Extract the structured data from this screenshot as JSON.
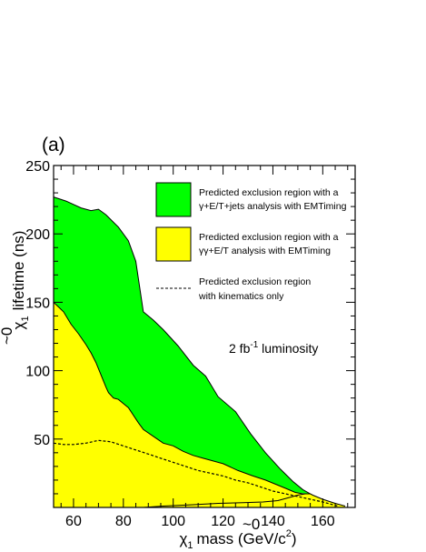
{
  "chart_data": {
    "type": "area",
    "panel_label": "(a)",
    "xlabel": "mass (GeV/c",
    "xlabel_symbol": "χ",
    "xlabel_sup": "~0",
    "xlabel_sub": "1",
    "xlabel_unit_sup": "2",
    "xlabel_close": ")",
    "ylabel": "lifetime (ns)",
    "ylabel_symbol": "χ",
    "ylabel_sup": "~0",
    "ylabel_sub": "1",
    "xlim": [
      52,
      173
    ],
    "ylim": [
      0,
      250
    ],
    "x_ticks": [
      "60",
      "80",
      "100",
      "120",
      "140",
      "160"
    ],
    "x_tick_values": [
      60,
      80,
      100,
      120,
      140,
      160
    ],
    "y_ticks": [
      "50",
      "100",
      "150",
      "200",
      "250"
    ],
    "y_tick_values": [
      50,
      100,
      150,
      200,
      250
    ],
    "annotation": {
      "text": "2 fb",
      "sup": "-1",
      "rest": " luminosity"
    },
    "series": [
      {
        "name": "green-region",
        "color": "#00ff00",
        "upper": [
          [
            52,
            227
          ],
          [
            57,
            224
          ],
          [
            63,
            219
          ],
          [
            67,
            217
          ],
          [
            70,
            218
          ],
          [
            73,
            214
          ],
          [
            78,
            205
          ],
          [
            82,
            195
          ],
          [
            85,
            180
          ],
          [
            88,
            143
          ],
          [
            92,
            137
          ],
          [
            96,
            130
          ],
          [
            102,
            118
          ],
          [
            108,
            104
          ],
          [
            113,
            96
          ],
          [
            118,
            81
          ],
          [
            125,
            70
          ],
          [
            131,
            54
          ],
          [
            137,
            40
          ],
          [
            143,
            28
          ],
          [
            148,
            19
          ],
          [
            152,
            13
          ],
          [
            155,
            10
          ]
        ],
        "lower": [
          [
            52,
            50
          ],
          [
            58,
            58
          ],
          [
            62,
            62
          ],
          [
            67,
            66
          ],
          [
            72,
            69
          ],
          [
            76,
            69
          ],
          [
            80,
            66
          ],
          [
            85,
            60
          ],
          [
            88,
            55
          ],
          [
            92,
            52
          ],
          [
            96,
            47
          ],
          [
            100,
            45
          ],
          [
            104,
            41
          ],
          [
            108,
            38
          ],
          [
            112,
            36
          ],
          [
            116,
            34
          ],
          [
            120,
            32
          ],
          [
            126,
            27
          ],
          [
            132,
            23
          ],
          [
            137,
            20
          ],
          [
            141,
            17
          ],
          [
            145,
            14
          ],
          [
            149,
            11
          ],
          [
            155,
            10
          ]
        ]
      },
      {
        "name": "yellow-region",
        "color": "#ffff00",
        "upper": [
          [
            52,
            150
          ],
          [
            56,
            143
          ],
          [
            59,
            134
          ],
          [
            62,
            127
          ],
          [
            65,
            119
          ],
          [
            67,
            113
          ],
          [
            69,
            106
          ],
          [
            71,
            97
          ],
          [
            73,
            88
          ],
          [
            74,
            84
          ],
          [
            76,
            80
          ],
          [
            78,
            79
          ],
          [
            80,
            76
          ],
          [
            82,
            73
          ],
          [
            86,
            62
          ],
          [
            88,
            57
          ],
          [
            92,
            52
          ],
          [
            96,
            47
          ],
          [
            100,
            45
          ],
          [
            104,
            41
          ],
          [
            108,
            38
          ],
          [
            112,
            36
          ],
          [
            116,
            34
          ],
          [
            120,
            32
          ],
          [
            126,
            27
          ],
          [
            132,
            23
          ],
          [
            137,
            20
          ],
          [
            141,
            17
          ],
          [
            145,
            14
          ],
          [
            149,
            11
          ],
          [
            152,
            10
          ],
          [
            155,
            10
          ],
          [
            156,
            9
          ],
          [
            160,
            6
          ],
          [
            165,
            3
          ],
          [
            169,
            1
          ]
        ],
        "lower": [
          [
            52,
            0
          ],
          [
            169,
            0
          ]
        ]
      }
    ],
    "dashed_line": {
      "name": "kinematics-only",
      "points": [
        [
          52,
          47
        ],
        [
          56,
          46
        ],
        [
          60,
          46
        ],
        [
          65,
          47
        ],
        [
          70,
          49
        ],
        [
          75,
          48
        ],
        [
          80,
          45
        ],
        [
          85,
          42
        ],
        [
          90,
          39
        ],
        [
          95,
          36
        ],
        [
          100,
          33
        ],
        [
          105,
          30
        ],
        [
          110,
          27
        ],
        [
          115,
          25
        ],
        [
          120,
          23
        ],
        [
          125,
          20
        ],
        [
          130,
          18
        ],
        [
          135,
          15
        ],
        [
          140,
          12
        ],
        [
          145,
          10
        ],
        [
          150,
          8
        ],
        [
          155,
          6
        ],
        [
          160,
          4
        ],
        [
          166,
          1
        ]
      ]
    },
    "lower_curve": {
      "points": [
        [
          88,
          0
        ],
        [
          96,
          1
        ],
        [
          108,
          2
        ],
        [
          118,
          3
        ],
        [
          128,
          3.5
        ],
        [
          136,
          4
        ],
        [
          142,
          5
        ],
        [
          146,
          7
        ],
        [
          150,
          9
        ],
        [
          153,
          10
        ]
      ]
    },
    "legend": [
      {
        "kind": "box",
        "color": "#00ff00",
        "line1": "Predicted exclusion region with a",
        "line2": "γ+E/T+jets analysis with EMTiming"
      },
      {
        "kind": "box",
        "color": "#ffff00",
        "line1": "Predicted exclusion region with a",
        "line2": "γγ+E/T analysis with EMTiming"
      },
      {
        "kind": "dashed",
        "color": "#000000",
        "line1": "Predicted exclusion region",
        "line2": "with kinematics only"
      }
    ]
  }
}
